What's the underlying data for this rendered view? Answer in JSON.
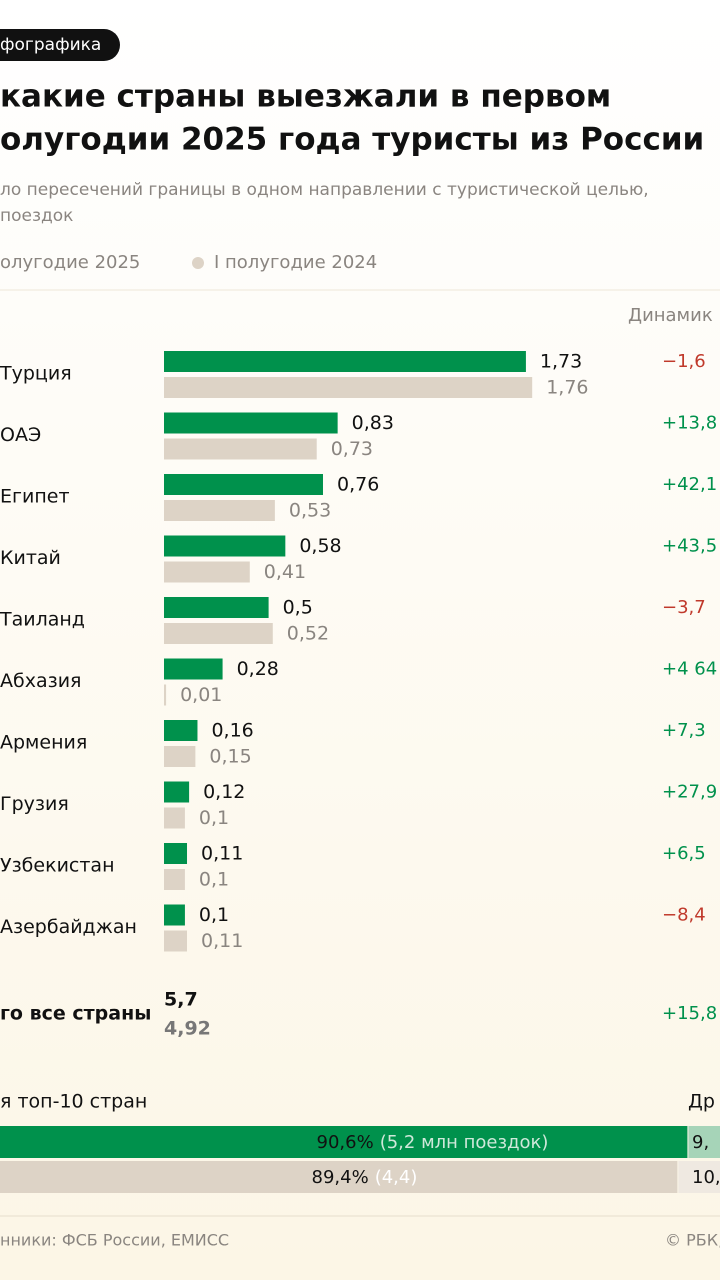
{
  "chart_data": {
    "type": "bar",
    "tag": "фографика",
    "title_lines": [
      "какие страны выезжали в первом",
      "олугодии 2025 года туристы из России"
    ],
    "subtitle_lines": [
      "ло пересечений границы в одном направлении с туристической целью,",
      "поездок"
    ],
    "dynamics_header": "Динамик",
    "categories": [
      "Турция",
      "ОАЭ",
      "Египет",
      "Китай",
      "Таиланд",
      "Абхазия",
      "Армения",
      "Грузия",
      "Узбекистан",
      "Азербайджан"
    ],
    "series": [
      {
        "name": "олугодие 2025",
        "color": "#00914c",
        "text_color": "#111111",
        "values": [
          1.73,
          0.83,
          0.76,
          0.58,
          0.5,
          0.28,
          0.16,
          0.12,
          0.11,
          0.1
        ],
        "value_labels": [
          "1,73",
          "0,83",
          "0,76",
          "0,58",
          "0,5",
          "0,28",
          "0,16",
          "0,12",
          "0,11",
          "0,1"
        ]
      },
      {
        "name": "I полугодие 2024",
        "color": "#ddd3c6",
        "text_color": "#8a8580",
        "values": [
          1.76,
          0.73,
          0.53,
          0.41,
          0.52,
          0.01,
          0.15,
          0.1,
          0.1,
          0.11
        ],
        "value_labels": [
          "1,76",
          "0,73",
          "0,53",
          "0,41",
          "0,52",
          "0,01",
          "0,15",
          "0,1",
          "0,1",
          "0,11"
        ]
      }
    ],
    "dynamics": [
      "−1,6",
      "+13,8",
      "+42,1",
      "+43,5",
      "−3,7",
      "+4 64",
      "+7,3",
      "+27,9",
      "+6,5",
      "−8,4"
    ],
    "total": {
      "label": "го все страны",
      "values": [
        5.7,
        4.92
      ],
      "value_labels": [
        "5,7",
        "4,92"
      ],
      "dynamics": "+15,8"
    },
    "share": {
      "title": "я топ-10 стран",
      "other_title": "Др",
      "values": [
        90.6,
        89.4
      ],
      "value_labels": [
        "90,6%",
        "89,4%"
      ],
      "notes": [
        "(5,2 млн поездок)",
        "(4,4)"
      ],
      "other_labels": [
        "9,",
        "10,"
      ],
      "other_colors": [
        "#a6d4b8",
        "#efe9e1"
      ]
    },
    "source": "нники: ФСБ России, ЕМИСС",
    "credit": "© РБК,"
  }
}
